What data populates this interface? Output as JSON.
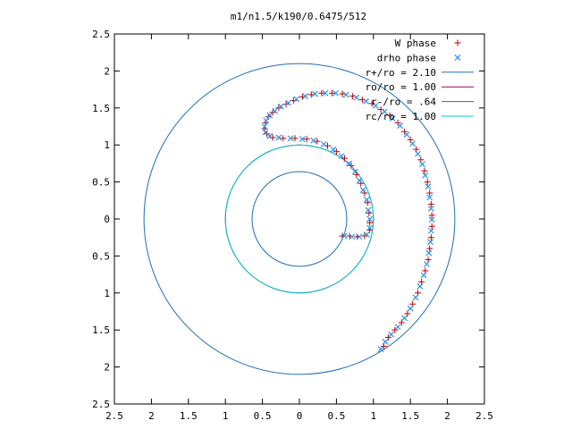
{
  "chart_data": {
    "type": "scatter",
    "title": "m1/n1.5/k190/0.6475/512",
    "xlabel": "",
    "ylabel": "",
    "xlim": [
      -2.5,
      2.5
    ],
    "ylim": [
      -2.5,
      2.5
    ],
    "x_ticks": [
      "2.5",
      "2",
      "1.5",
      "1",
      "0.5",
      "0",
      "0.5",
      "1",
      "1.5",
      "2",
      "2.5"
    ],
    "y_ticks": [
      "2.5",
      "2",
      "1.5",
      "1",
      "0.5",
      "0",
      "0.5",
      "1",
      "1.5",
      "2",
      "2.5"
    ],
    "grid": false,
    "legend_position": "top-right",
    "circles": [
      {
        "label": "r+/ro = 2.10",
        "radius": 2.1,
        "color": "#1f6fb5"
      },
      {
        "label": "ro/ro = 1.00",
        "radius": 1.0,
        "color": "#a0005a"
      },
      {
        "label": "r-/ro = .64",
        "radius": 0.64,
        "color": "#1f6fb5"
      },
      {
        "label": "rc/ro = 1.00",
        "radius": 1.0,
        "color": "#00cccc"
      }
    ],
    "series": [
      {
        "name": "W phase",
        "marker": "+",
        "color": "#c00000",
        "points": [
          [
            1.14,
            -1.72
          ],
          [
            1.2,
            -1.6
          ],
          [
            1.29,
            -1.5
          ],
          [
            1.38,
            -1.4
          ],
          [
            1.46,
            -1.28
          ],
          [
            1.53,
            -1.15
          ],
          [
            1.6,
            -1.0
          ],
          [
            1.65,
            -0.85
          ],
          [
            1.7,
            -0.7
          ],
          [
            1.74,
            -0.55
          ],
          [
            1.76,
            -0.4
          ],
          [
            1.78,
            -0.25
          ],
          [
            1.79,
            -0.1
          ],
          [
            1.79,
            0.05
          ],
          [
            1.78,
            0.2
          ],
          [
            1.76,
            0.35
          ],
          [
            1.73,
            0.5
          ],
          [
            1.69,
            0.65
          ],
          [
            1.64,
            0.8
          ],
          [
            1.58,
            0.94
          ],
          [
            1.5,
            1.07
          ],
          [
            1.42,
            1.18
          ],
          [
            1.33,
            1.3
          ],
          [
            1.22,
            1.4
          ],
          [
            1.1,
            1.48
          ],
          [
            0.98,
            1.56
          ],
          [
            0.85,
            1.61
          ],
          [
            0.72,
            1.66
          ],
          [
            0.58,
            1.69
          ],
          [
            0.44,
            1.7
          ],
          [
            0.3,
            1.7
          ],
          [
            0.16,
            1.68
          ],
          [
            0.04,
            1.65
          ],
          [
            -0.08,
            1.6
          ],
          [
            -0.18,
            1.55
          ],
          [
            -0.28,
            1.5
          ],
          [
            -0.36,
            1.44
          ],
          [
            -0.42,
            1.38
          ],
          [
            -0.46,
            1.3
          ],
          [
            -0.47,
            1.22
          ],
          [
            -0.44,
            1.15
          ],
          [
            -0.36,
            1.1
          ],
          [
            -0.22,
            1.09
          ],
          [
            -0.06,
            1.09
          ],
          [
            0.1,
            1.08
          ],
          [
            0.24,
            1.05
          ],
          [
            0.38,
            0.99
          ],
          [
            0.5,
            0.91
          ],
          [
            0.61,
            0.82
          ],
          [
            0.7,
            0.72
          ],
          [
            0.77,
            0.6
          ],
          [
            0.83,
            0.48
          ],
          [
            0.88,
            0.35
          ],
          [
            0.92,
            0.22
          ],
          [
            0.94,
            0.08
          ],
          [
            0.95,
            -0.05
          ],
          [
            0.95,
            -0.15
          ],
          [
            0.88,
            -0.23
          ],
          [
            0.78,
            -0.24
          ],
          [
            0.68,
            -0.23
          ],
          [
            0.58,
            -0.23
          ]
        ]
      },
      {
        "name": "drho phase",
        "marker": "x",
        "color": "#2f8fe8",
        "points": [
          [
            1.1,
            -1.76
          ],
          [
            1.16,
            -1.66
          ],
          [
            1.24,
            -1.56
          ],
          [
            1.33,
            -1.46
          ],
          [
            1.42,
            -1.34
          ],
          [
            1.5,
            -1.21
          ],
          [
            1.57,
            -1.06
          ],
          [
            1.63,
            -0.91
          ],
          [
            1.68,
            -0.76
          ],
          [
            1.72,
            -0.61
          ],
          [
            1.75,
            -0.46
          ],
          [
            1.77,
            -0.31
          ],
          [
            1.78,
            -0.16
          ],
          [
            1.79,
            -0.01
          ],
          [
            1.78,
            0.14
          ],
          [
            1.76,
            0.29
          ],
          [
            1.74,
            0.44
          ],
          [
            1.7,
            0.59
          ],
          [
            1.66,
            0.74
          ],
          [
            1.6,
            0.88
          ],
          [
            1.53,
            1.02
          ],
          [
            1.45,
            1.14
          ],
          [
            1.36,
            1.26
          ],
          [
            1.26,
            1.36
          ],
          [
            1.15,
            1.45
          ],
          [
            1.03,
            1.53
          ],
          [
            0.9,
            1.59
          ],
          [
            0.77,
            1.64
          ],
          [
            0.63,
            1.68
          ],
          [
            0.49,
            1.7
          ],
          [
            0.35,
            1.7
          ],
          [
            0.21,
            1.69
          ],
          [
            0.08,
            1.66
          ],
          [
            -0.04,
            1.62
          ],
          [
            -0.15,
            1.57
          ],
          [
            -0.25,
            1.52
          ],
          [
            -0.33,
            1.46
          ],
          [
            -0.4,
            1.4
          ],
          [
            -0.45,
            1.33
          ],
          [
            -0.47,
            1.25
          ],
          [
            -0.46,
            1.17
          ],
          [
            -0.4,
            1.12
          ],
          [
            -0.28,
            1.1
          ],
          [
            -0.12,
            1.09
          ],
          [
            0.04,
            1.08
          ],
          [
            0.19,
            1.06
          ],
          [
            0.33,
            1.01
          ],
          [
            0.46,
            0.94
          ],
          [
            0.57,
            0.85
          ],
          [
            0.67,
            0.75
          ],
          [
            0.75,
            0.64
          ],
          [
            0.81,
            0.52
          ],
          [
            0.86,
            0.39
          ],
          [
            0.91,
            0.26
          ],
          [
            0.93,
            0.12
          ],
          [
            0.95,
            0.0
          ],
          [
            0.95,
            -0.12
          ],
          [
            0.91,
            -0.21
          ],
          [
            0.81,
            -0.24
          ],
          [
            0.71,
            -0.24
          ],
          [
            0.61,
            -0.23
          ]
        ]
      }
    ]
  }
}
